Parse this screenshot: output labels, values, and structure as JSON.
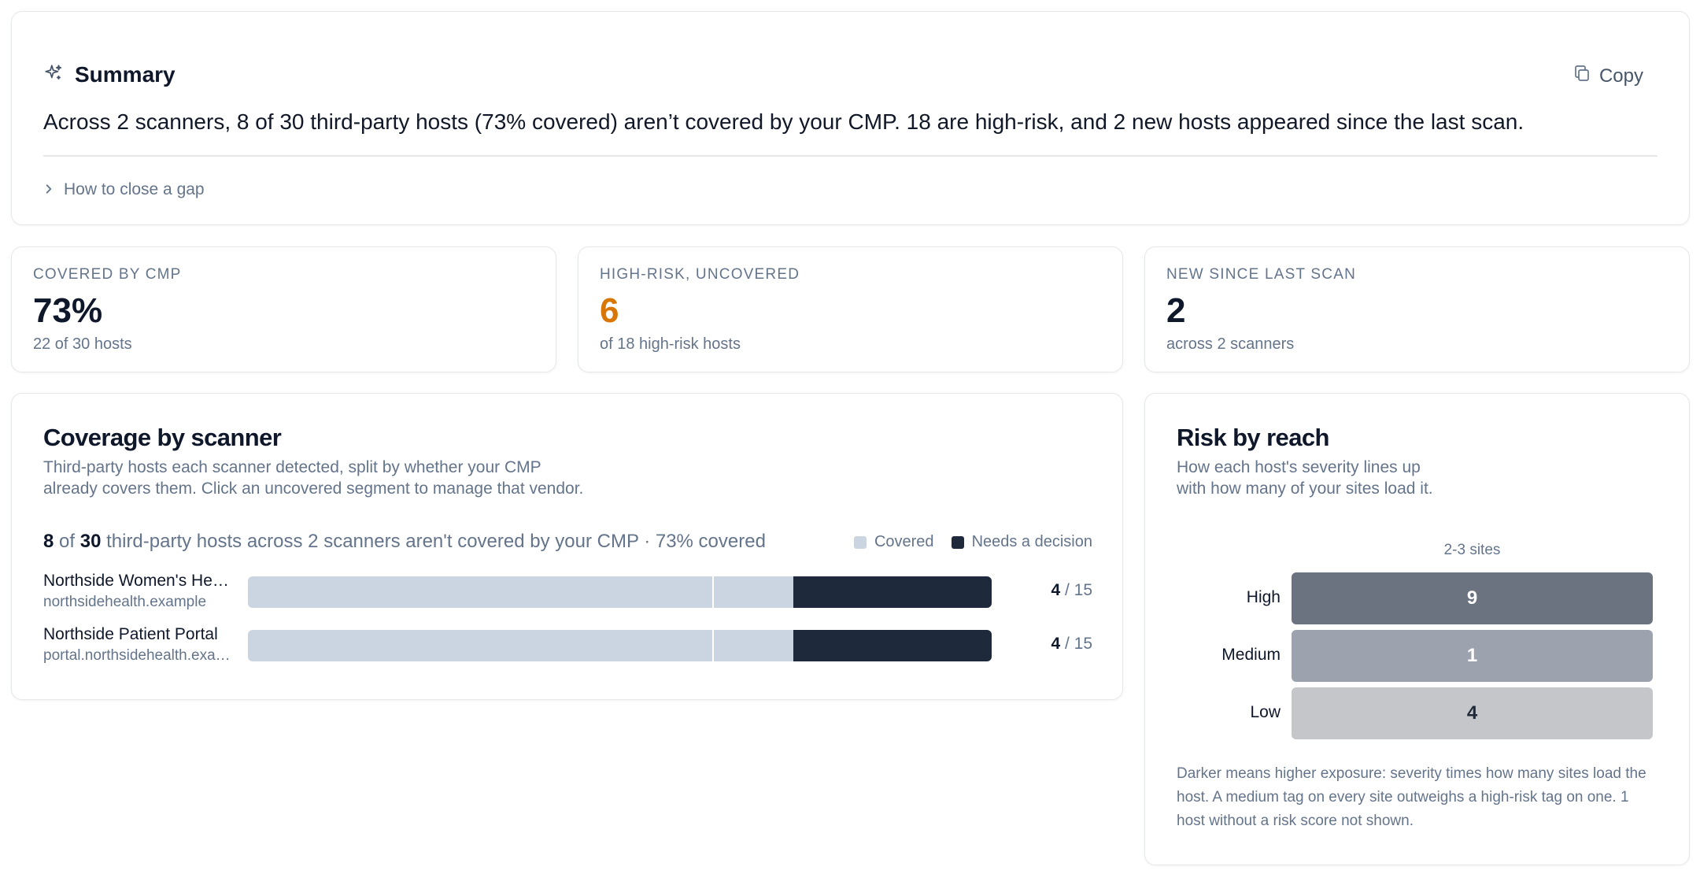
{
  "summary": {
    "title": "Summary",
    "copy_label": "Copy",
    "body": "Across 2 scanners, 8 of 30 third-party hosts (73% covered) aren’t covered by your CMP. 18 are high-risk, and 2 new hosts appeared since the last scan.",
    "howto_label": "How to close a gap"
  },
  "stats": [
    {
      "label": "Covered by CMP",
      "value": "73%",
      "sub": "22 of 30 hosts",
      "color": "#0f172a"
    },
    {
      "label": "High-risk, uncovered",
      "value": "6",
      "sub": "of 18 high-risk hosts",
      "color": "#d97706"
    },
    {
      "label": "New since last scan",
      "value": "2",
      "sub": "across 2 scanners",
      "color": "#0f172a"
    }
  ],
  "coverage": {
    "title": "Coverage by scanner",
    "description_line1": "Third-party hosts each scanner detected, split by whether your CMP",
    "description_line2": "already covers them. Click an uncovered segment to manage that vendor.",
    "summary_uncovered": "8",
    "summary_of": " of ",
    "summary_total": "30",
    "summary_rest": " third-party hosts across 2 scanners aren't covered by your CMP · 73% covered",
    "legend_covered": "Covered",
    "legend_needs": "Needs a decision",
    "colors": {
      "covered": "#cbd5e1",
      "uncovered": "#1e293b"
    },
    "scanners": [
      {
        "name": "Northside Women's Health",
        "host": "northsidehealth.example",
        "uncovered": "4",
        "total": "15",
        "covered_fraction": 0.733
      },
      {
        "name": "Northside Patient Portal",
        "host": "portal.northsidehealth.example",
        "uncovered": "4",
        "total": "15",
        "covered_fraction": 0.733
      }
    ]
  },
  "risk": {
    "title": "Risk by reach",
    "description_line1": "How each host's severity lines up",
    "description_line2": "with how many of your sites load it.",
    "column": "2-3 sites",
    "rows": [
      {
        "label": "High",
        "value": "9",
        "bg": "#6b7280",
        "fg": "#ffffff"
      },
      {
        "label": "Medium",
        "value": "1",
        "bg": "#9ca3af",
        "fg": "#ffffff"
      },
      {
        "label": "Low",
        "value": "4",
        "bg": "#c4c6ca",
        "fg": "#1f2937"
      }
    ],
    "note": "Darker means higher exposure: severity times how many sites load the host. A medium tag on every site outweighs a high-risk tag on one. 1 host without a risk score not shown."
  }
}
